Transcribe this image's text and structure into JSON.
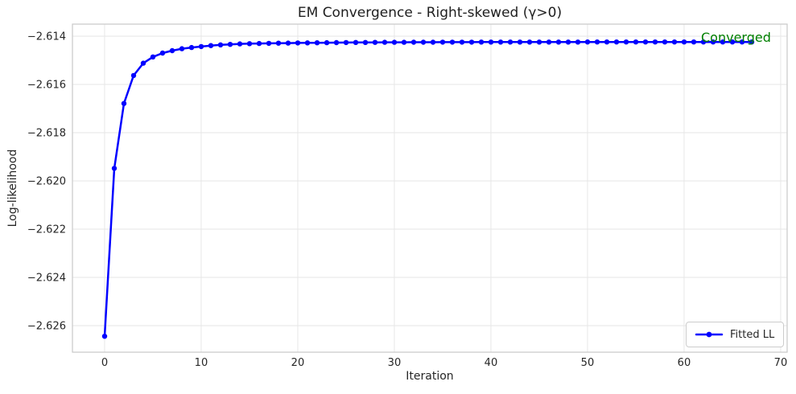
{
  "chart_data": {
    "type": "line",
    "title": "EM Convergence - Right-skewed (γ>0)",
    "xlabel": "Iteration",
    "ylabel": "Log-likelihood",
    "legend": [
      "Fitted LL"
    ],
    "legend_position": "lower right",
    "annotation": {
      "text": "Converged",
      "color": "#008000"
    },
    "grid": true,
    "xlim": [
      -3.33,
      70.67
    ],
    "ylim": [
      -2.6271,
      -2.6135
    ],
    "xticks": [
      0,
      10,
      20,
      30,
      40,
      50,
      60,
      70
    ],
    "yticks": [
      -2.614,
      -2.616,
      -2.618,
      -2.62,
      -2.622,
      -2.624,
      -2.626
    ],
    "ytick_labels": [
      "−2.614",
      "−2.616",
      "−2.618",
      "−2.620",
      "−2.622",
      "−2.624",
      "−2.626"
    ],
    "colors": {
      "line": "#0000ff",
      "annotation": "#008000",
      "grid": "#e6e6e6",
      "spine": "#c9c9c9",
      "text": "#262626"
    },
    "series": [
      {
        "name": "Fitted LL",
        "color": "#0000ff",
        "marker": "circle",
        "x": [
          0,
          1,
          2,
          3,
          4,
          5,
          6,
          7,
          8,
          9,
          10,
          11,
          12,
          13,
          14,
          15,
          16,
          17,
          18,
          19,
          20,
          21,
          22,
          23,
          24,
          25,
          26,
          27,
          28,
          29,
          30,
          31,
          32,
          33,
          34,
          35,
          36,
          37,
          38,
          39,
          40,
          41,
          42,
          43,
          44,
          45,
          46,
          47,
          48,
          49,
          50,
          51,
          52,
          53,
          54,
          55,
          56,
          57,
          58,
          59,
          60,
          61,
          62,
          63,
          64,
          65,
          66,
          67
        ],
        "y": [
          -2.62644,
          -2.61948,
          -2.61679,
          -2.61563,
          -2.61512,
          -2.61486,
          -2.6147,
          -2.6146,
          -2.61452,
          -2.61447,
          -2.61443,
          -2.61439,
          -2.61436,
          -2.61434,
          -2.61432,
          -2.61431,
          -2.614303,
          -2.614296,
          -2.61429,
          -2.614285,
          -2.61428,
          -2.614276,
          -2.614272,
          -2.614269,
          -2.614266,
          -2.614263,
          -2.614261,
          -2.614259,
          -2.614257,
          -2.614255,
          -2.614254,
          -2.614252,
          -2.614251,
          -2.61425,
          -2.614249,
          -2.614248,
          -2.614247,
          -2.614247,
          -2.614246,
          -2.614245,
          -2.614245,
          -2.614244,
          -2.614244,
          -2.614243,
          -2.614243,
          -2.614243,
          -2.614242,
          -2.614242,
          -2.614242,
          -2.614242,
          -2.614241,
          -2.614241,
          -2.614241,
          -2.614241,
          -2.614241,
          -2.61424,
          -2.61424,
          -2.61424,
          -2.61424,
          -2.61424,
          -2.61424,
          -2.61424,
          -2.61424,
          -2.614239,
          -2.614239,
          -2.614239,
          -2.614239,
          -2.614239
        ]
      }
    ]
  }
}
